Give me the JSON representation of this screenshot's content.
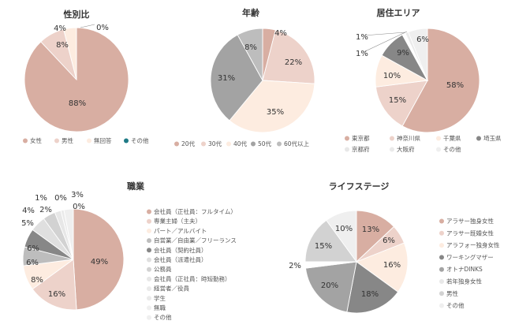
{
  "colors": {
    "c1": "#d8aea2",
    "c2": "#edd2ca",
    "c3": "#fdece0",
    "c4": "#a3a3a3",
    "c5": "#878787",
    "c6": "#bdbdbd",
    "c7": "#d2d2d2",
    "c8": "#dfdfdf",
    "c9": "#e7e7e7",
    "c10": "#eaeaea",
    "c11": "#efefef",
    "white": "#ffffff",
    "teal": "#1f7a86"
  },
  "chart_data": [
    {
      "type": "pie",
      "title": "性別比",
      "slices": [
        {
          "name": "女性",
          "value": 88,
          "label": "88%"
        },
        {
          "name": "男性",
          "value": 8,
          "label": "8%"
        },
        {
          "name": "無回答",
          "value": 4,
          "label": "4%"
        },
        {
          "name": "その他",
          "value": 0,
          "label": "0%"
        }
      ],
      "legend_position": "bottom"
    },
    {
      "type": "pie",
      "title": "年齢",
      "slices": [
        {
          "name": "20代",
          "value": 4,
          "label": "4%"
        },
        {
          "name": "30代",
          "value": 22,
          "label": "22%"
        },
        {
          "name": "40代",
          "value": 35,
          "label": "35%"
        },
        {
          "name": "50代",
          "value": 31,
          "label": "31%"
        },
        {
          "name": "60代以上",
          "value": 8,
          "label": "8%"
        }
      ],
      "legend_position": "bottom"
    },
    {
      "type": "pie",
      "title": "居住エリア",
      "slices": [
        {
          "name": "東京都",
          "value": 58,
          "label": "58%"
        },
        {
          "name": "神奈川県",
          "value": 15,
          "label": "15%"
        },
        {
          "name": "千葉県",
          "value": 10,
          "label": "10%"
        },
        {
          "name": "埼玉県",
          "value": 9,
          "label": "9%"
        },
        {
          "name": "京都府",
          "value": 1,
          "label": "1%"
        },
        {
          "name": "大阪府",
          "value": 1,
          "label": "1%"
        },
        {
          "name": "その他",
          "value": 6,
          "label": "6%"
        }
      ],
      "legend_position": "bottom"
    },
    {
      "type": "pie",
      "title": "職業",
      "slices": [
        {
          "name": "会社員（正社員：フルタイム）",
          "value": 49,
          "label": "49%"
        },
        {
          "name": "専業主婦（主夫）",
          "value": 16,
          "label": "16%"
        },
        {
          "name": "パート／アルバイト",
          "value": 8,
          "label": "8%"
        },
        {
          "name": "自営業／自由業／フリーランス",
          "value": 6,
          "label": "6%"
        },
        {
          "name": "会社員（契約社員）",
          "value": 6,
          "label": "6%"
        },
        {
          "name": "会社員（派遣社員）",
          "value": 5,
          "label": "5%"
        },
        {
          "name": "公務員",
          "value": 4,
          "label": "4%"
        },
        {
          "name": "会社員（正社員：時短勤務）",
          "value": 2,
          "label": "2%"
        },
        {
          "name": "経営者／役員",
          "value": 1,
          "label": "1%"
        },
        {
          "name": "学生",
          "value": 0,
          "label": "0%"
        },
        {
          "name": "無職",
          "value": 3,
          "label": "3%"
        },
        {
          "name": "その他",
          "value": 0,
          "label": "0%"
        }
      ],
      "legend_position": "right"
    },
    {
      "type": "pie",
      "title": "ライフステージ",
      "slices": [
        {
          "name": "アラサー独身女性",
          "value": 13,
          "label": "13%"
        },
        {
          "name": "アラサー既婚女性",
          "value": 6,
          "label": "6%"
        },
        {
          "name": "アラフォー独身女性",
          "value": 16,
          "label": "16%"
        },
        {
          "name": "ワーキングマザー",
          "value": 18,
          "label": "18%"
        },
        {
          "name": "オトナDINKS",
          "value": 20,
          "label": "20%"
        },
        {
          "name": "若年独身女性",
          "value": 2,
          "label": "2%"
        },
        {
          "name": "男性",
          "value": 15,
          "label": "15%"
        },
        {
          "name": "その他",
          "value": 10,
          "label": "10%"
        }
      ],
      "legend_position": "right"
    }
  ]
}
